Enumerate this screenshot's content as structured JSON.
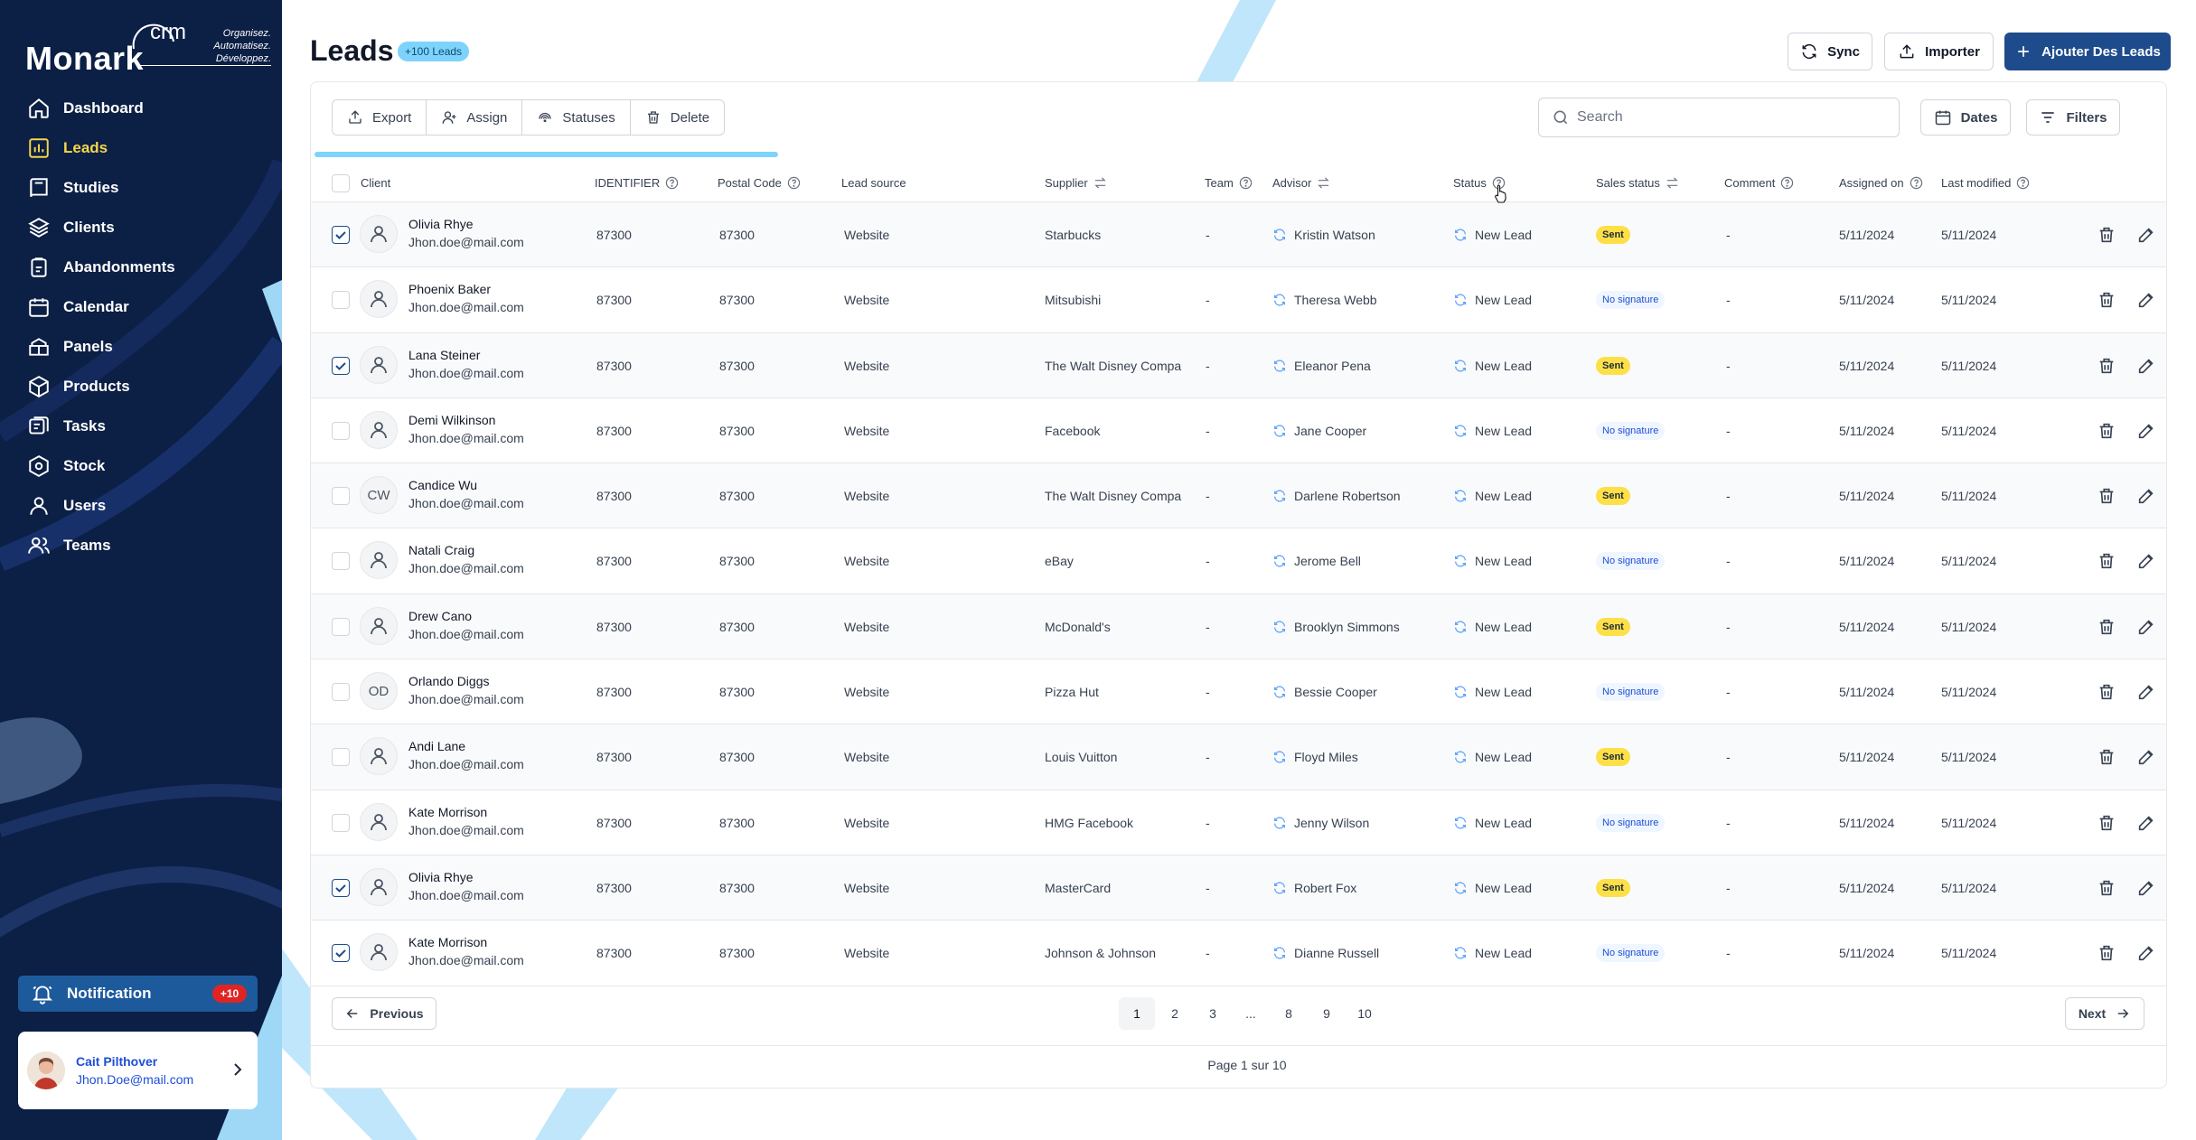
{
  "brand": {
    "name": "Monark",
    "crm": "crm",
    "tagline": [
      "Organisez.",
      "Automatisez.",
      "Développez."
    ]
  },
  "sidebar": {
    "items": [
      {
        "label": "Dashboard",
        "icon": "home-icon"
      },
      {
        "label": "Leads",
        "icon": "chart-icon",
        "active": true
      },
      {
        "label": "Studies",
        "icon": "book-icon"
      },
      {
        "label": "Clients",
        "icon": "layers-icon"
      },
      {
        "label": "Abandonments",
        "icon": "clipboard-icon"
      },
      {
        "label": "Calendar",
        "icon": "calendar-icon"
      },
      {
        "label": "Panels",
        "icon": "panels-icon"
      },
      {
        "label": "Products",
        "icon": "box-icon"
      },
      {
        "label": "Tasks",
        "icon": "tasks-icon"
      },
      {
        "label": "Stock",
        "icon": "stock-icon"
      },
      {
        "label": "Users",
        "icon": "user-icon"
      },
      {
        "label": "Teams",
        "icon": "team-icon"
      }
    ],
    "notification": {
      "label": "Notification",
      "count": "+10"
    },
    "user": {
      "name": "Cait Pilthover",
      "email": "Jhon.Doe@mail.com"
    }
  },
  "header": {
    "title": "Leads",
    "badge": "+100 Leads",
    "sync": "Sync",
    "import": "Importer",
    "add": "Ajouter Des Leads"
  },
  "toolbar": {
    "export": "Export",
    "assign": "Assign",
    "statuses": "Statuses",
    "delete": "Delete",
    "search_placeholder": "Search",
    "dates": "Dates",
    "filters": "Filters"
  },
  "progress": 0.25,
  "columns": {
    "client": "Client",
    "identifier": "IDENTIFIER",
    "postal": "Postal Code",
    "source": "Lead source",
    "supplier": "Supplier",
    "team": "Team",
    "advisor": "Advisor",
    "status": "Status",
    "sales": "Sales status",
    "comment": "Comment",
    "assigned": "Assigned on",
    "modified": "Last modified"
  },
  "rows": [
    {
      "checked": true,
      "avatar": "",
      "name": "Olivia Rhye",
      "email": "Jhon.doe@mail.com",
      "identifier": "87300",
      "postal": "87300",
      "source": "Website",
      "supplier": "Starbucks",
      "team": "-",
      "advisor": "Kristin Watson",
      "status": "New Lead",
      "sales": "Sent",
      "comment": "-",
      "assigned": "5/11/2024",
      "modified": "5/11/2024"
    },
    {
      "checked": false,
      "avatar": "",
      "name": "Phoenix Baker",
      "email": "Jhon.doe@mail.com",
      "identifier": "87300",
      "postal": "87300",
      "source": "Website",
      "supplier": "Mitsubishi",
      "team": "-",
      "advisor": "Theresa Webb",
      "status": "New Lead",
      "sales": "No signature",
      "comment": "-",
      "assigned": "5/11/2024",
      "modified": "5/11/2024"
    },
    {
      "checked": true,
      "avatar": "",
      "name": "Lana Steiner",
      "email": "Jhon.doe@mail.com",
      "identifier": "87300",
      "postal": "87300",
      "source": "Website",
      "supplier": "The Walt Disney Compa",
      "team": "-",
      "advisor": "Eleanor Pena",
      "status": "New Lead",
      "sales": "Sent",
      "comment": "-",
      "assigned": "5/11/2024",
      "modified": "5/11/2024"
    },
    {
      "checked": false,
      "avatar": "",
      "name": "Demi Wilkinson",
      "email": "Jhon.doe@mail.com",
      "identifier": "87300",
      "postal": "87300",
      "source": "Website",
      "supplier": "Facebook",
      "team": "-",
      "advisor": "Jane Cooper",
      "status": "New Lead",
      "sales": "No signature",
      "comment": "-",
      "assigned": "5/11/2024",
      "modified": "5/11/2024"
    },
    {
      "checked": false,
      "avatar": "CW",
      "name": "Candice Wu",
      "email": "Jhon.doe@mail.com",
      "identifier": "87300",
      "postal": "87300",
      "source": "Website",
      "supplier": "The Walt Disney Compa",
      "team": "-",
      "advisor": "Darlene Robertson",
      "status": "New Lead",
      "sales": "Sent",
      "comment": "-",
      "assigned": "5/11/2024",
      "modified": "5/11/2024"
    },
    {
      "checked": false,
      "avatar": "",
      "name": "Natali Craig",
      "email": "Jhon.doe@mail.com",
      "identifier": "87300",
      "postal": "87300",
      "source": "Website",
      "supplier": "eBay",
      "team": "-",
      "advisor": "Jerome Bell",
      "status": "New Lead",
      "sales": "No signature",
      "comment": "-",
      "assigned": "5/11/2024",
      "modified": "5/11/2024"
    },
    {
      "checked": false,
      "avatar": "",
      "name": "Drew Cano",
      "email": "Jhon.doe@mail.com",
      "identifier": "87300",
      "postal": "87300",
      "source": "Website",
      "supplier": "McDonald's",
      "team": "-",
      "advisor": "Brooklyn Simmons",
      "status": "New Lead",
      "sales": "Sent",
      "comment": "-",
      "assigned": "5/11/2024",
      "modified": "5/11/2024"
    },
    {
      "checked": false,
      "avatar": "OD",
      "name": "Orlando Diggs",
      "email": "Jhon.doe@mail.com",
      "identifier": "87300",
      "postal": "87300",
      "source": "Website",
      "supplier": "Pizza Hut",
      "team": "-",
      "advisor": "Bessie Cooper",
      "status": "New Lead",
      "sales": "No signature",
      "comment": "-",
      "assigned": "5/11/2024",
      "modified": "5/11/2024"
    },
    {
      "checked": false,
      "avatar": "",
      "name": "Andi Lane",
      "email": "Jhon.doe@mail.com",
      "identifier": "87300",
      "postal": "87300",
      "source": "Website",
      "supplier": "Louis Vuitton",
      "team": "-",
      "advisor": "Floyd Miles",
      "status": "New Lead",
      "sales": "Sent",
      "comment": "-",
      "assigned": "5/11/2024",
      "modified": "5/11/2024"
    },
    {
      "checked": false,
      "avatar": "",
      "name": "Kate Morrison",
      "email": "Jhon.doe@mail.com",
      "identifier": "87300",
      "postal": "87300",
      "source": "Website",
      "supplier": "HMG Facebook",
      "team": "-",
      "advisor": "Jenny Wilson",
      "status": "New Lead",
      "sales": "No signature",
      "comment": "-",
      "assigned": "5/11/2024",
      "modified": "5/11/2024"
    },
    {
      "checked": true,
      "avatar": "",
      "name": "Olivia Rhye",
      "email": "Jhon.doe@mail.com",
      "identifier": "87300",
      "postal": "87300",
      "source": "Website",
      "supplier": "MasterCard",
      "team": "-",
      "advisor": "Robert Fox",
      "status": "New Lead",
      "sales": "Sent",
      "comment": "-",
      "assigned": "5/11/2024",
      "modified": "5/11/2024"
    },
    {
      "checked": true,
      "avatar": "",
      "name": "Kate Morrison",
      "email": "Jhon.doe@mail.com",
      "identifier": "87300",
      "postal": "87300",
      "source": "Website",
      "supplier": "Johnson & Johnson",
      "team": "-",
      "advisor": "Dianne Russell",
      "status": "New Lead",
      "sales": "No signature",
      "comment": "-",
      "assigned": "5/11/2024",
      "modified": "5/11/2024"
    }
  ],
  "pagination": {
    "previous": "Previous",
    "next": "Next",
    "pages": [
      "1",
      "2",
      "3",
      "...",
      "8",
      "9",
      "10"
    ],
    "current": "1",
    "info": "Page 1 sur 10"
  },
  "colors": {
    "sidebar": "#0c1f45",
    "accent": "#1d4b8c",
    "active_nav": "#f5d64a",
    "sent_badge": "#fde047",
    "deco": "#bfe6fb"
  }
}
